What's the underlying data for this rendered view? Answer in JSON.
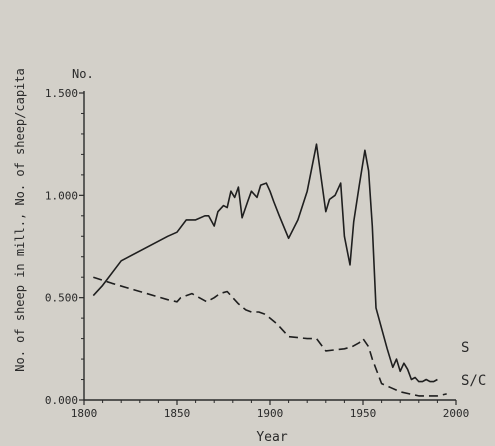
{
  "chart_data": {
    "type": "line",
    "xlabel": "Year",
    "ylabel": "No. of sheep in mill., No. of sheep/capita",
    "y_unit_label": "No.",
    "xlim": [
      1800,
      2000
    ],
    "ylim": [
      0,
      1.5
    ],
    "x_ticks": [
      1800,
      1850,
      1900,
      1950,
      2000
    ],
    "x_tick_labels": [
      "1800",
      "1850",
      "1900",
      "1950",
      "2000"
    ],
    "y_ticks": [
      0,
      0.5,
      1.0,
      1.5
    ],
    "y_tick_labels": [
      "0.000",
      "0.500",
      "1.000",
      "1.500"
    ],
    "grid": false,
    "series": [
      {
        "name": "S",
        "style": "solid",
        "color": "#1f1f1f",
        "x": [
          1805,
          1810,
          1820,
          1845,
          1850,
          1855,
          1860,
          1865,
          1867,
          1870,
          1872,
          1875,
          1877,
          1879,
          1881,
          1883,
          1885,
          1888,
          1890,
          1893,
          1895,
          1898,
          1900,
          1902,
          1905,
          1910,
          1915,
          1920,
          1925,
          1930,
          1932,
          1935,
          1938,
          1940,
          1943,
          1945,
          1948,
          1951,
          1953,
          1955,
          1957,
          1960,
          1963,
          1966,
          1968,
          1970,
          1972,
          1974,
          1976,
          1978,
          1980,
          1982,
          1984,
          1986,
          1988,
          1990
        ],
        "y": [
          0.51,
          0.56,
          0.68,
          0.8,
          0.82,
          0.88,
          0.88,
          0.9,
          0.9,
          0.85,
          0.92,
          0.95,
          0.94,
          1.02,
          0.99,
          1.04,
          0.89,
          0.97,
          1.02,
          0.99,
          1.05,
          1.06,
          1.02,
          0.97,
          0.9,
          0.79,
          0.88,
          1.02,
          1.25,
          0.92,
          0.98,
          1.0,
          1.06,
          0.8,
          0.66,
          0.87,
          1.05,
          1.22,
          1.12,
          0.85,
          0.45,
          0.35,
          0.25,
          0.16,
          0.2,
          0.14,
          0.18,
          0.15,
          0.1,
          0.11,
          0.09,
          0.09,
          0.1,
          0.09,
          0.09,
          0.1
        ]
      },
      {
        "name": "S/C",
        "style": "dashed",
        "color": "#1f1f1f",
        "x": [
          1805,
          1815,
          1830,
          1845,
          1850,
          1852,
          1858,
          1862,
          1866,
          1870,
          1873,
          1877,
          1880,
          1883,
          1887,
          1890,
          1894,
          1897,
          1900,
          1904,
          1910,
          1920,
          1925,
          1930,
          1940,
          1944,
          1948,
          1950,
          1953,
          1955,
          1960,
          1965,
          1970,
          1975,
          1980,
          1985,
          1990,
          1995
        ],
        "y": [
          0.6,
          0.57,
          0.53,
          0.49,
          0.48,
          0.5,
          0.52,
          0.5,
          0.48,
          0.5,
          0.52,
          0.53,
          0.5,
          0.47,
          0.44,
          0.43,
          0.43,
          0.42,
          0.4,
          0.37,
          0.31,
          0.3,
          0.3,
          0.24,
          0.25,
          0.26,
          0.28,
          0.3,
          0.26,
          0.2,
          0.08,
          0.06,
          0.04,
          0.03,
          0.02,
          0.02,
          0.02,
          0.03
        ]
      }
    ]
  }
}
